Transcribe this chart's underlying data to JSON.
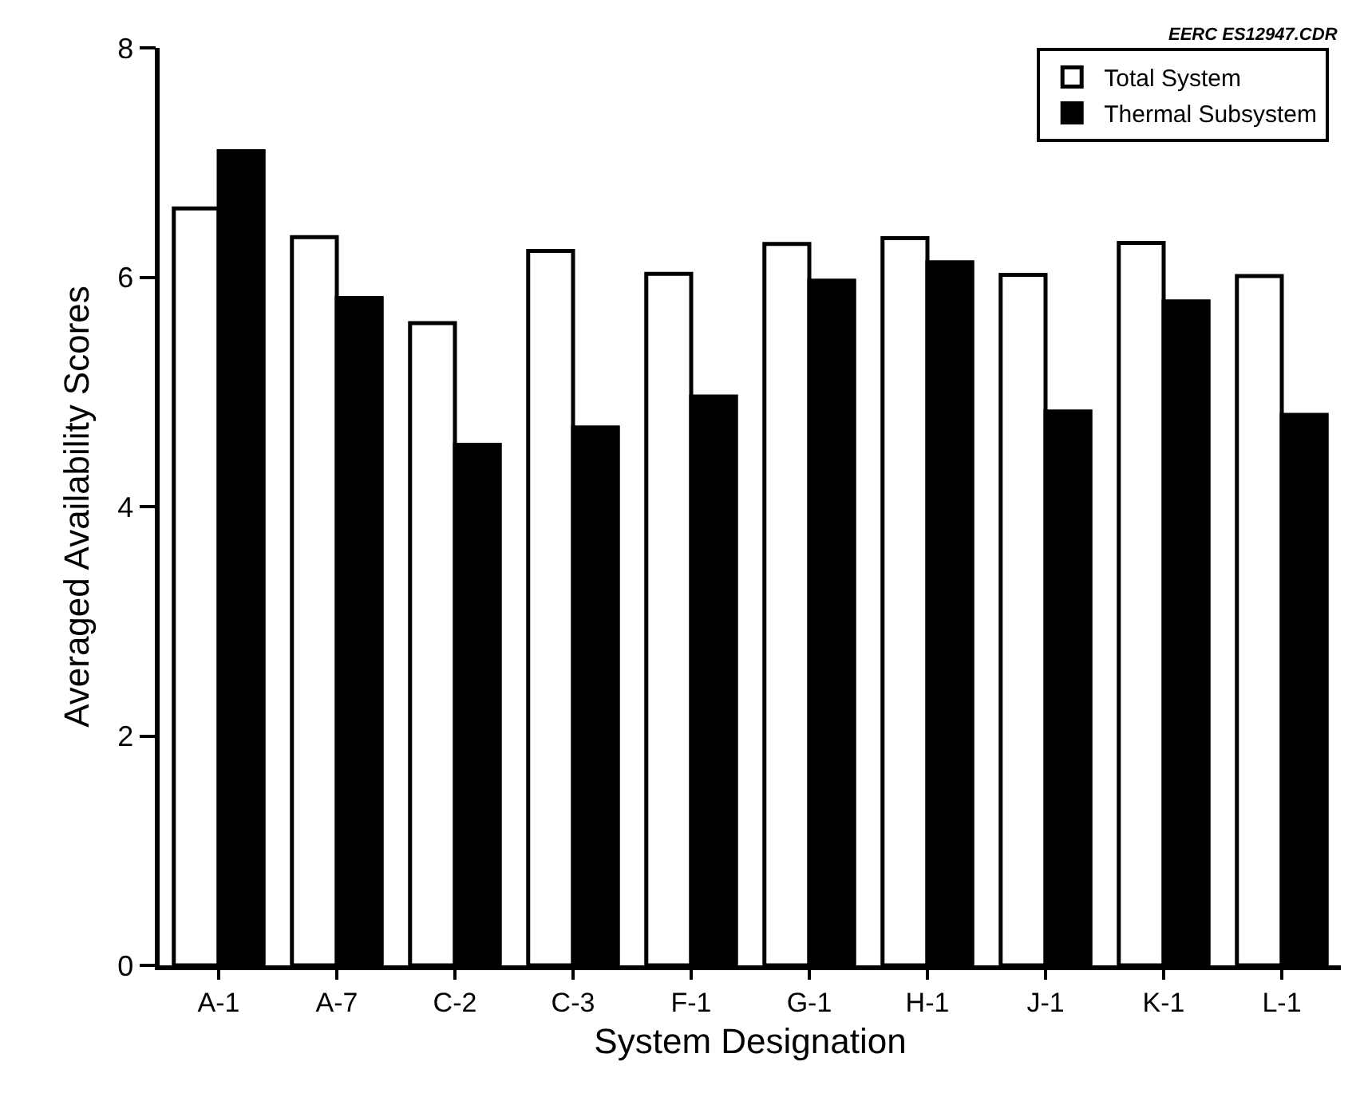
{
  "chart_data": {
    "type": "bar",
    "xlabel": "System Designation",
    "ylabel": "Averaged Availability Scores",
    "annotations": [
      "EERC ES12947.CDR"
    ],
    "categories": [
      "A-1",
      "A-7",
      "C-2",
      "C-3",
      "F-1",
      "G-1",
      "H-1",
      "J-1",
      "K-1",
      "L-1"
    ],
    "series": [
      {
        "name": "Total System",
        "color": "#ffffff",
        "values": [
          6.6,
          6.35,
          5.6,
          6.23,
          6.03,
          6.29,
          6.34,
          6.02,
          6.3,
          6.01
        ]
      },
      {
        "name": "Thermal Subsystem",
        "color": "#000000",
        "values": [
          7.1,
          5.82,
          4.54,
          4.69,
          4.96,
          5.97,
          6.13,
          4.83,
          5.79,
          4.8
        ]
      }
    ],
    "ylim": [
      0,
      8
    ],
    "yticks": [
      0,
      2,
      4,
      6,
      8
    ],
    "grid": false,
    "legend": "top right"
  }
}
